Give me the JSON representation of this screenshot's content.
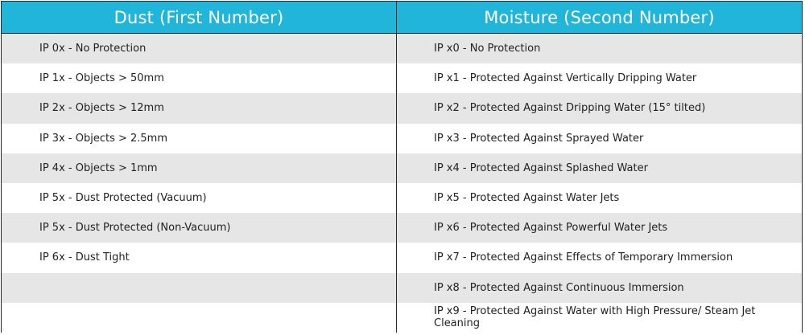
{
  "colors": {
    "header_bg": "#22b5da",
    "header_text": "#ffffff",
    "row_alt": "#e6e6e6",
    "border": "#2a2a2a"
  },
  "headers": {
    "dust": "Dust (First Number)",
    "moisture": "Moisture (Second Number)"
  },
  "dust": [
    "IP 0x - No Protection",
    "IP 1x - Objects > 50mm",
    "IP 2x - Objects > 12mm",
    "IP 3x - Objects > 2.5mm",
    "IP 4x - Objects > 1mm",
    "IP 5x - Dust Protected (Vacuum)",
    "IP 5x - Dust Protected (Non-Vacuum)",
    "IP 6x - Dust Tight",
    "",
    ""
  ],
  "moisture": [
    "IP x0 - No Protection",
    "IP x1 - Protected Against Vertically Dripping Water",
    "IP x2 - Protected Against Dripping Water (15° tilted)",
    "IP x3 - Protected Against Sprayed Water",
    "IP x4 - Protected Against Splashed Water",
    "IP x5 - Protected Against Water Jets",
    "IP x6 - Protected Against Powerful Water Jets",
    "IP x7 - Protected Against Effects of Temporary Immersion",
    "IP x8 - Protected Against Continuous Immersion",
    "IP x9 - Protected Against Water with High Pressure/ Steam Jet Cleaning"
  ]
}
